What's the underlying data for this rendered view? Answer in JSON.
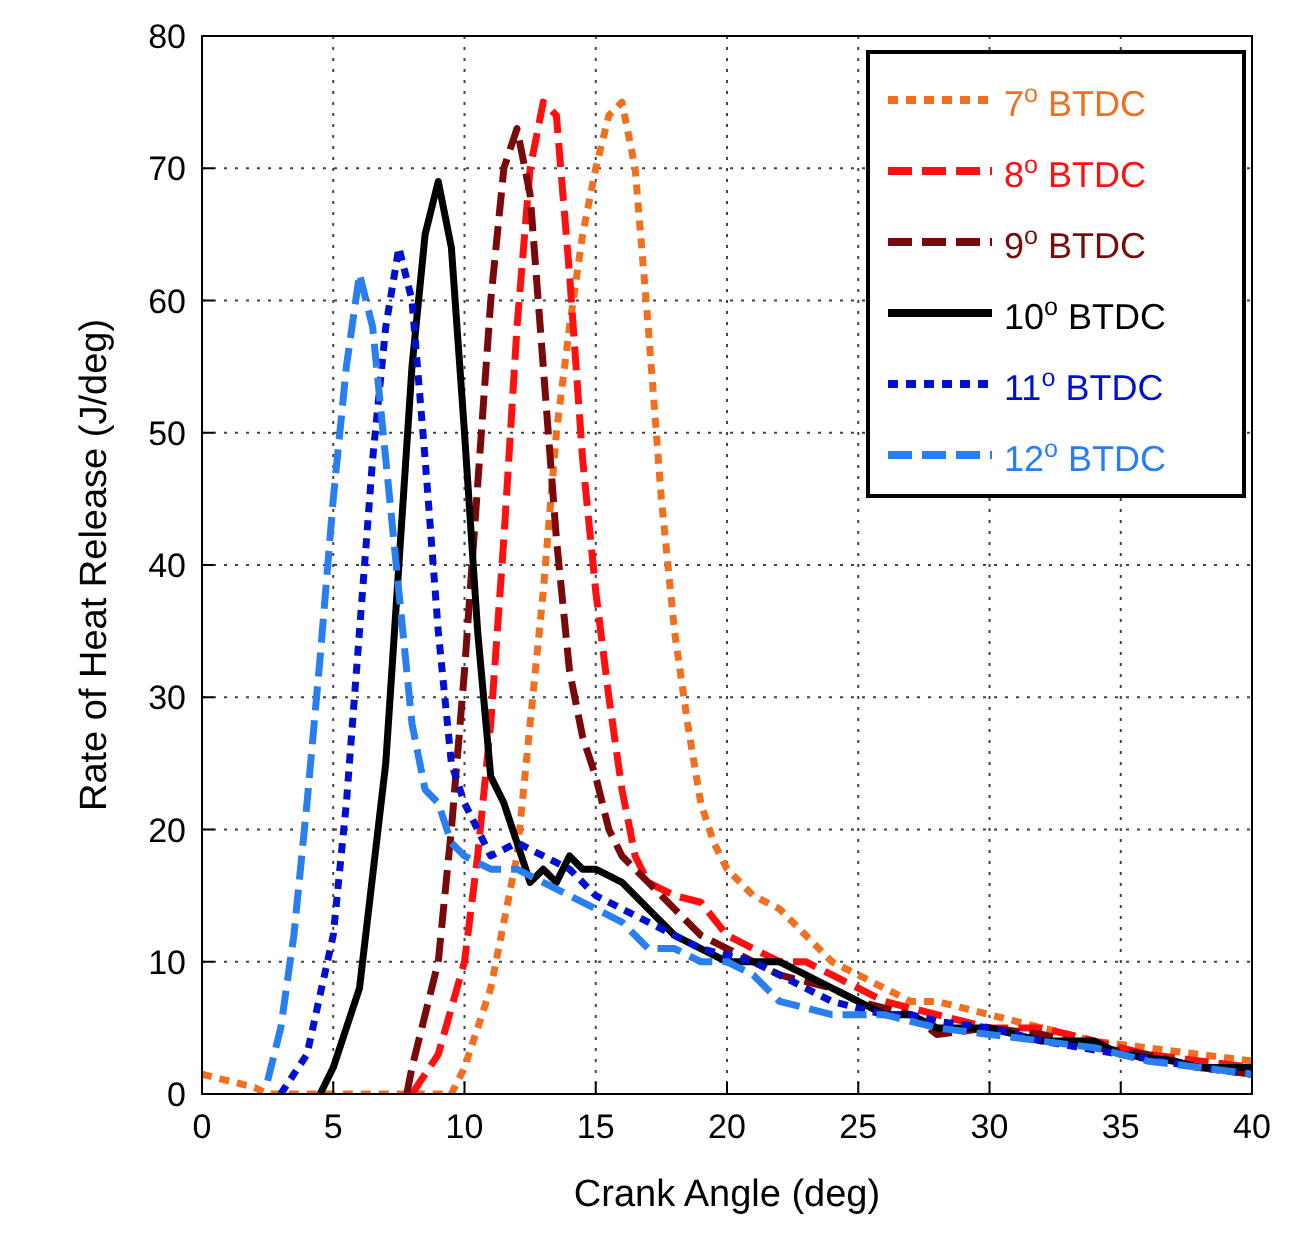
{
  "chart_data": {
    "type": "line",
    "xlabel": "Crank Angle (deg)",
    "ylabel": "Rate of Heat Release (J/deg)",
    "xlim": [
      0,
      40
    ],
    "ylim": [
      0,
      80
    ],
    "xticks": [
      0,
      5,
      10,
      15,
      20,
      25,
      30,
      35,
      40
    ],
    "yticks": [
      0,
      10,
      20,
      30,
      40,
      50,
      60,
      70,
      80
    ],
    "grid": true,
    "legend": "top right",
    "marker": "none",
    "series": [
      {
        "name": "7$^{o}$ BTDC",
        "color": "#f07020",
        "line_style": "dotted",
        "x": [
          0,
          1,
          2,
          2.5,
          9.5,
          10,
          11,
          12,
          12.5,
          13,
          13.5,
          14,
          14.5,
          15,
          15.5,
          16,
          16.5,
          17,
          17.5,
          18,
          18.5,
          19,
          19.5,
          20,
          21,
          22,
          23,
          24,
          25,
          26,
          27,
          28,
          30,
          32,
          34,
          36,
          38,
          40
        ],
        "values": [
          1.5,
          1,
          0.5,
          0,
          0,
          2,
          8,
          18,
          28,
          38,
          50,
          58,
          65,
          70,
          74,
          75,
          70,
          58,
          45,
          35,
          28,
          22,
          19,
          17,
          15,
          14,
          12,
          10,
          9,
          8,
          7,
          7,
          6,
          5,
          4,
          3.5,
          3,
          2.5
        ]
      },
      {
        "name": "8$^{o}$ BTDC",
        "color": "#ff1010",
        "line_style": "dashed",
        "x": [
          8,
          9,
          10,
          10.5,
          11,
          11.5,
          12,
          12.5,
          13,
          13.5,
          14,
          14.5,
          15,
          15.5,
          16,
          16.5,
          17,
          18,
          19,
          20,
          21,
          22,
          23,
          24,
          25,
          26,
          27,
          28,
          30,
          32,
          34,
          36,
          38,
          40
        ],
        "values": [
          0,
          3,
          10,
          18,
          28,
          42,
          58,
          70,
          75,
          74,
          62,
          48,
          38,
          30,
          23,
          18,
          16,
          15,
          14.5,
          12,
          11,
          10,
          10,
          9,
          8,
          7,
          6.5,
          6,
          5,
          5,
          4,
          3,
          2.5,
          2
        ]
      },
      {
        "name": "9$^{o}$ BTDC",
        "color": "#7a0a0a",
        "line_style": "dashed",
        "x": [
          7.8,
          8,
          9,
          9.5,
          10,
          10.5,
          11,
          11.5,
          12,
          12.5,
          13,
          13.5,
          14,
          14.5,
          15,
          15.5,
          16,
          17,
          18,
          19,
          20,
          21,
          22,
          23,
          24,
          25,
          26,
          27,
          28,
          30,
          32,
          34,
          36,
          38,
          40
        ],
        "values": [
          0,
          2,
          10,
          20,
          32,
          46,
          60,
          70,
          73,
          68,
          55,
          42,
          32,
          27,
          24,
          20,
          18,
          16,
          14,
          12,
          11,
          10,
          9,
          8.5,
          8,
          7,
          6.5,
          6,
          4.5,
          5,
          4.5,
          3.5,
          3,
          2,
          1.5
        ]
      },
      {
        "name": "10$^{o}$ BTDC",
        "color": "#000000",
        "line_style": "solid",
        "x": [
          4.5,
          5,
          6,
          7,
          7.5,
          8,
          8.5,
          9,
          9.5,
          10,
          10.5,
          11,
          11.5,
          12,
          12.5,
          13,
          13.5,
          14,
          14.5,
          15,
          16,
          17,
          18,
          19,
          20,
          21,
          22,
          23,
          24,
          25,
          26,
          27,
          28,
          30,
          32,
          34,
          35,
          37,
          38,
          40
        ],
        "values": [
          0,
          2,
          8,
          25,
          40,
          55,
          65,
          69,
          64,
          50,
          35,
          24,
          22,
          19,
          16,
          17,
          16,
          18,
          17,
          17,
          16,
          14,
          12,
          11,
          10,
          10,
          10,
          9,
          8,
          7,
          6,
          6,
          5,
          5,
          4,
          4,
          3,
          2.5,
          2,
          2
        ]
      },
      {
        "name": "11$^{o}$ BTDC",
        "color": "#0010d0",
        "line_style": "dotted",
        "x": [
          3,
          4,
          5,
          5.5,
          6,
          6.5,
          7,
          7.5,
          8,
          8.5,
          9,
          9.5,
          10,
          10.5,
          11,
          12,
          13,
          14,
          15,
          16,
          17,
          18,
          19,
          20,
          21,
          22,
          23,
          24,
          25,
          26,
          27,
          28,
          30,
          32,
          35,
          38,
          40
        ],
        "values": [
          0,
          3,
          12,
          22,
          35,
          48,
          58,
          64,
          60,
          48,
          35,
          25,
          22,
          20,
          18,
          19,
          18,
          17,
          15,
          14,
          13,
          12,
          11,
          10.5,
          10,
          9,
          8,
          7,
          6.5,
          6,
          6,
          5.5,
          5,
          4,
          3,
          2,
          1.5
        ]
      },
      {
        "name": "12$^{o}$ BTDC",
        "color": "#2a7ff0",
        "line_style": "dashed",
        "x": [
          2.5,
          3,
          3.5,
          4,
          4.5,
          5,
          5.5,
          6,
          6.5,
          7,
          7.5,
          8,
          8.5,
          9,
          9.5,
          10,
          11,
          12,
          13,
          14,
          15,
          16,
          17,
          18,
          19,
          20,
          21,
          22,
          23,
          24,
          25,
          26,
          27,
          28,
          30,
          32,
          34,
          36,
          38,
          40
        ],
        "values": [
          1,
          5,
          12,
          22,
          33,
          45,
          55,
          62,
          58,
          48,
          38,
          28,
          23,
          22,
          19,
          18,
          17,
          17,
          16,
          15,
          14,
          13,
          11,
          11,
          10,
          10,
          9,
          7,
          6.5,
          6,
          6,
          6,
          5.5,
          5,
          4.5,
          4,
          3.5,
          2.5,
          2,
          1.5
        ]
      }
    ]
  }
}
